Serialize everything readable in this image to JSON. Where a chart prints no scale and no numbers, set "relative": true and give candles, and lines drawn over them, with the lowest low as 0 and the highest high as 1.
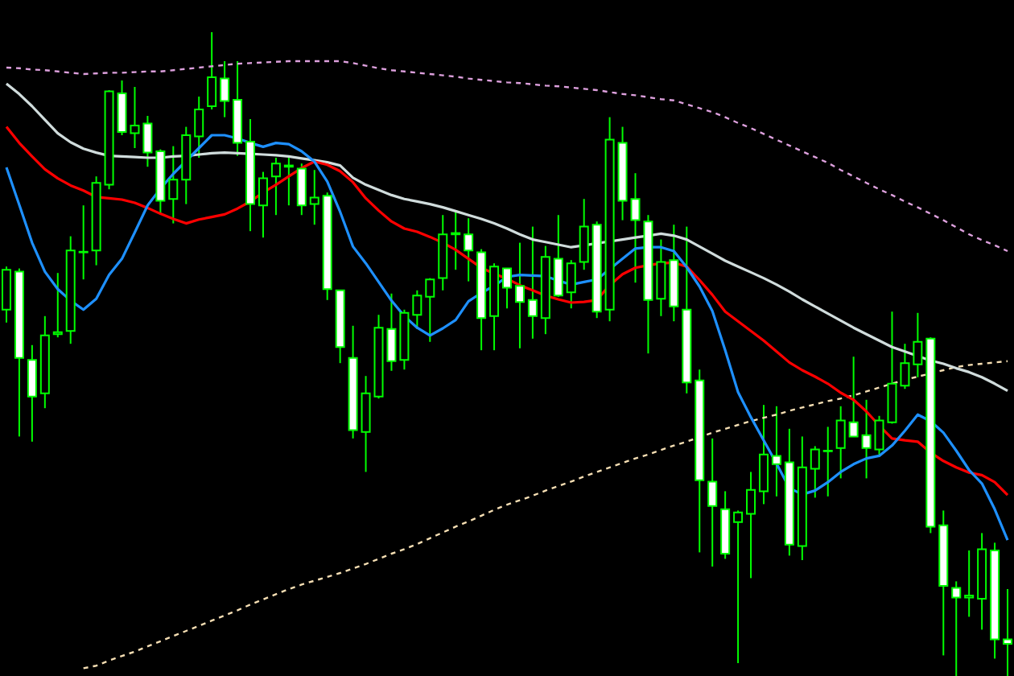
{
  "chart_data": {
    "type": "candlestick",
    "relative": true,
    "categories": [
      null,
      null,
      null,
      null,
      null,
      null,
      null,
      null,
      null,
      null,
      null,
      null,
      null,
      null,
      null,
      null,
      null,
      null,
      null,
      null,
      null,
      null,
      null,
      null,
      null,
      null,
      null,
      null,
      null,
      null,
      null,
      null,
      null,
      null,
      null,
      null,
      null,
      null,
      null,
      null,
      null,
      null,
      null,
      null,
      null,
      null,
      null,
      null,
      null,
      null,
      null,
      null,
      null,
      null,
      null,
      null,
      null,
      null,
      null,
      null,
      null,
      null,
      null,
      null,
      null,
      null,
      null,
      null,
      null,
      null,
      null,
      null,
      null,
      null,
      null,
      null,
      null,
      null,
      null
    ],
    "color": "#00ff00",
    "ohlc": [
      [
        0.569,
        0.636,
        0.549,
        0.631
      ],
      [
        0.628,
        0.633,
        0.372,
        0.494
      ],
      [
        0.491,
        0.514,
        0.364,
        0.434
      ],
      [
        0.439,
        0.559,
        0.416,
        0.529
      ],
      [
        0.531,
        0.626,
        0.526,
        0.534
      ],
      [
        0.536,
        0.683,
        0.516,
        0.661
      ],
      [
        0.658,
        0.731,
        0.616,
        0.659
      ],
      [
        0.661,
        0.776,
        0.638,
        0.766
      ],
      [
        0.763,
        0.91,
        0.756,
        0.908
      ],
      [
        0.905,
        0.925,
        0.84,
        0.845
      ],
      [
        0.843,
        0.915,
        0.82,
        0.855
      ],
      [
        0.858,
        0.87,
        0.791,
        0.813
      ],
      [
        0.815,
        0.818,
        0.718,
        0.738
      ],
      [
        0.741,
        0.823,
        0.703,
        0.771
      ],
      [
        0.771,
        0.853,
        0.733,
        0.84
      ],
      [
        0.838,
        0.9,
        0.805,
        0.88
      ],
      [
        0.885,
        1,
        0.88,
        0.93
      ],
      [
        0.928,
        0.955,
        0.868,
        0.893
      ],
      [
        0.895,
        0.955,
        0.808,
        0.828
      ],
      [
        0.83,
        0.865,
        0.691,
        0.733
      ],
      [
        0.731,
        0.783,
        0.681,
        0.773
      ],
      [
        0.776,
        0.805,
        0.716,
        0.796
      ],
      [
        0.791,
        0.805,
        0.731,
        0.793
      ],
      [
        0.788,
        0.796,
        0.716,
        0.731
      ],
      [
        0.733,
        0.786,
        0.701,
        0.743
      ],
      [
        0.746,
        0.751,
        0.584,
        0.601
      ],
      [
        0.599,
        0.599,
        0.486,
        0.511
      ],
      [
        0.494,
        0.544,
        0.369,
        0.382
      ],
      [
        0.379,
        0.466,
        0.317,
        0.439
      ],
      [
        0.434,
        0.561,
        0.431,
        0.541
      ],
      [
        0.539,
        0.594,
        0.474,
        0.489
      ],
      [
        0.491,
        0.569,
        0.476,
        0.564
      ],
      [
        0.561,
        0.599,
        0.539,
        0.591
      ],
      [
        0.589,
        0.618,
        0.519,
        0.616
      ],
      [
        0.618,
        0.716,
        0.599,
        0.686
      ],
      [
        0.686,
        0.721,
        0.631,
        0.688
      ],
      [
        0.686,
        0.711,
        0.613,
        0.661
      ],
      [
        0.658,
        0.663,
        0.506,
        0.556
      ],
      [
        0.559,
        0.641,
        0.506,
        0.636
      ],
      [
        0.633,
        0.633,
        0.571,
        0.603
      ],
      [
        0.606,
        0.673,
        0.509,
        0.581
      ],
      [
        0.584,
        0.698,
        0.524,
        0.559
      ],
      [
        0.556,
        0.668,
        0.531,
        0.651
      ],
      [
        0.648,
        0.716,
        0.589,
        0.591
      ],
      [
        0.596,
        0.646,
        0.571,
        0.641
      ],
      [
        0.643,
        0.741,
        0.631,
        0.698
      ],
      [
        0.701,
        0.706,
        0.556,
        0.566
      ],
      [
        0.569,
        0.868,
        0.551,
        0.833
      ],
      [
        0.828,
        0.853,
        0.708,
        0.738
      ],
      [
        0.741,
        0.781,
        0.611,
        0.708
      ],
      [
        0.706,
        0.716,
        0.501,
        0.584
      ],
      [
        0.586,
        0.678,
        0.559,
        0.643
      ],
      [
        0.646,
        0.701,
        0.551,
        0.574
      ],
      [
        0.569,
        0.698,
        0.439,
        0.456
      ],
      [
        0.459,
        0.476,
        0.192,
        0.304
      ],
      [
        0.302,
        0.369,
        0.17,
        0.264
      ],
      [
        0.259,
        0.287,
        0.182,
        0.19
      ],
      [
        0.239,
        0.257,
        0.02,
        0.254
      ],
      [
        0.252,
        0.317,
        0.152,
        0.289
      ],
      [
        0.287,
        0.421,
        0.267,
        0.344
      ],
      [
        0.342,
        0.419,
        0.279,
        0.329
      ],
      [
        0.332,
        0.384,
        0.187,
        0.204
      ],
      [
        0.202,
        0.372,
        0.18,
        0.324
      ],
      [
        0.322,
        0.357,
        0.277,
        0.352
      ],
      [
        0.349,
        0.387,
        0.279,
        0.35
      ],
      [
        0.354,
        0.419,
        0.307,
        0.397
      ],
      [
        0.394,
        0.496,
        0.372,
        0.372
      ],
      [
        0.374,
        0.429,
        0.307,
        0.354
      ],
      [
        0.352,
        0.404,
        0.342,
        0.397
      ],
      [
        0.394,
        0.566,
        0.392,
        0.454
      ],
      [
        0.451,
        0.516,
        0.446,
        0.486
      ],
      [
        0.484,
        0.564,
        0.464,
        0.519
      ],
      [
        0.524,
        0.526,
        0.222,
        0.232
      ],
      [
        0.234,
        0.257,
        0.032,
        0.14
      ],
      [
        0.137,
        0.147,
        0,
        0.122
      ],
      [
        0.122,
        0.195,
        0.092,
        0.125
      ],
      [
        0.12,
        0.222,
        0.072,
        0.197
      ],
      [
        0.195,
        0.207,
        0.027,
        0.057
      ],
      [
        0.057,
        0.135,
        0,
        0.05
      ]
    ],
    "series": [
      {
        "type": "line",
        "color": "#dda0dd",
        "line_style": "dotted",
        "values": [
          0.945,
          0.944,
          0.942,
          0.941,
          0.939,
          0.937,
          0.935,
          0.936,
          0.937,
          0.937,
          0.938,
          0.939,
          0.939,
          0.941,
          0.943,
          0.945,
          0.947,
          0.949,
          0.951,
          0.952,
          0.953,
          0.954,
          0.955,
          0.955,
          0.955,
          0.955,
          0.955,
          0.952,
          0.948,
          0.944,
          0.941,
          0.939,
          0.937,
          0.935,
          0.933,
          0.931,
          0.928,
          0.926,
          0.924,
          0.922,
          0.921,
          0.919,
          0.917,
          0.916,
          0.914,
          0.912,
          0.91,
          0.907,
          0.904,
          0.902,
          0.899,
          0.896,
          0.894,
          0.888,
          0.882,
          0.876,
          0.868,
          0.859,
          0.851,
          0.842,
          0.833,
          0.824,
          0.815,
          0.806,
          0.797,
          0.786,
          0.776,
          0.766,
          0.756,
          0.747,
          0.737,
          0.728,
          0.718,
          0.708,
          0.697,
          0.686,
          0.677,
          0.669,
          0.66
        ]
      },
      {
        "type": "line",
        "color": "#f5deb3",
        "line_style": "dotted",
        "values": [
          null,
          null,
          null,
          null,
          null,
          null,
          0.012,
          0.016,
          0.024,
          0.031,
          0.038,
          0.046,
          0.054,
          0.062,
          0.07,
          0.078,
          0.086,
          0.094,
          0.102,
          0.111,
          0.119,
          0.127,
          0.135,
          0.142,
          0.148,
          0.154,
          0.16,
          0.167,
          0.174,
          0.182,
          0.19,
          0.197,
          0.205,
          0.214,
          0.223,
          0.232,
          0.24,
          0.249,
          0.258,
          0.266,
          0.273,
          0.28,
          0.288,
          0.295,
          0.302,
          0.31,
          0.317,
          0.324,
          0.331,
          0.338,
          0.344,
          0.351,
          0.358,
          0.364,
          0.371,
          0.378,
          0.384,
          0.39,
          0.396,
          0.401,
          0.406,
          0.412,
          0.417,
          0.422,
          0.427,
          0.431,
          0.436,
          0.442,
          0.448,
          0.454,
          0.46,
          0.465,
          0.47,
          0.475,
          0.48,
          0.483,
          0.485,
          0.487,
          0.489
        ]
      },
      {
        "type": "line",
        "color": "#d0dcdc",
        "line_style": "solid",
        "values": [
          0.92,
          0.904,
          0.885,
          0.864,
          0.843,
          0.829,
          0.819,
          0.813,
          0.808,
          0.807,
          0.806,
          0.805,
          0.805,
          0.807,
          0.808,
          0.81,
          0.812,
          0.813,
          0.812,
          0.811,
          0.81,
          0.809,
          0.807,
          0.804,
          0.801,
          0.798,
          0.793,
          0.774,
          0.763,
          0.755,
          0.747,
          0.741,
          0.737,
          0.733,
          0.728,
          0.722,
          0.716,
          0.71,
          0.703,
          0.695,
          0.686,
          0.678,
          0.674,
          0.67,
          0.666,
          0.669,
          0.672,
          0.675,
          0.678,
          0.681,
          0.684,
          0.687,
          0.684,
          0.678,
          0.667,
          0.656,
          0.645,
          0.636,
          0.627,
          0.618,
          0.608,
          0.597,
          0.585,
          0.574,
          0.563,
          0.552,
          0.541,
          0.531,
          0.521,
          0.511,
          0.504,
          0.497,
          0.49,
          0.485,
          0.478,
          0.472,
          0.464,
          0.454,
          0.443
        ]
      },
      {
        "type": "line",
        "color": "#ff0000",
        "line_style": "solid",
        "values": [
          0.853,
          0.828,
          0.807,
          0.787,
          0.773,
          0.762,
          0.754,
          0.744,
          0.742,
          0.74,
          0.735,
          0.727,
          0.718,
          0.71,
          0.703,
          0.709,
          0.713,
          0.717,
          0.726,
          0.737,
          0.751,
          0.763,
          0.776,
          0.789,
          0.799,
          0.794,
          0.784,
          0.767,
          0.742,
          0.723,
          0.706,
          0.695,
          0.69,
          0.682,
          0.673,
          0.662,
          0.648,
          0.634,
          0.625,
          0.617,
          0.607,
          0.599,
          0.591,
          0.585,
          0.58,
          0.581,
          0.584,
          0.607,
          0.624,
          0.634,
          0.638,
          0.641,
          0.642,
          0.636,
          0.615,
          0.592,
          0.566,
          0.551,
          0.536,
          0.521,
          0.504,
          0.487,
          0.475,
          0.465,
          0.454,
          0.44,
          0.429,
          0.411,
          0.389,
          0.369,
          0.366,
          0.364,
          0.347,
          0.334,
          0.324,
          0.316,
          0.312,
          0.301,
          0.281
        ]
      },
      {
        "type": "line",
        "color": "#1e90ff",
        "line_style": "solid",
        "values": [
          0.79,
          0.732,
          0.673,
          0.628,
          0.601,
          0.583,
          0.569,
          0.586,
          0.623,
          0.648,
          0.689,
          0.731,
          0.757,
          0.78,
          0.8,
          0.82,
          0.84,
          0.84,
          0.835,
          0.828,
          0.822,
          0.828,
          0.826,
          0.815,
          0.799,
          0.768,
          0.721,
          0.667,
          0.641,
          0.612,
          0.583,
          0.559,
          0.541,
          0.529,
          0.54,
          0.553,
          0.582,
          0.595,
          0.606,
          0.62,
          0.623,
          0.622,
          0.621,
          0.614,
          0.608,
          0.612,
          0.616,
          0.632,
          0.648,
          0.664,
          0.666,
          0.666,
          0.66,
          0.635,
          0.605,
          0.567,
          0.506,
          0.441,
          0.402,
          0.366,
          0.33,
          0.292,
          0.282,
          0.288,
          0.301,
          0.317,
          0.329,
          0.338,
          0.342,
          0.358,
          0.381,
          0.406,
          0.396,
          0.378,
          0.35,
          0.32,
          0.299,
          0.259,
          0.211
        ]
      }
    ]
  }
}
